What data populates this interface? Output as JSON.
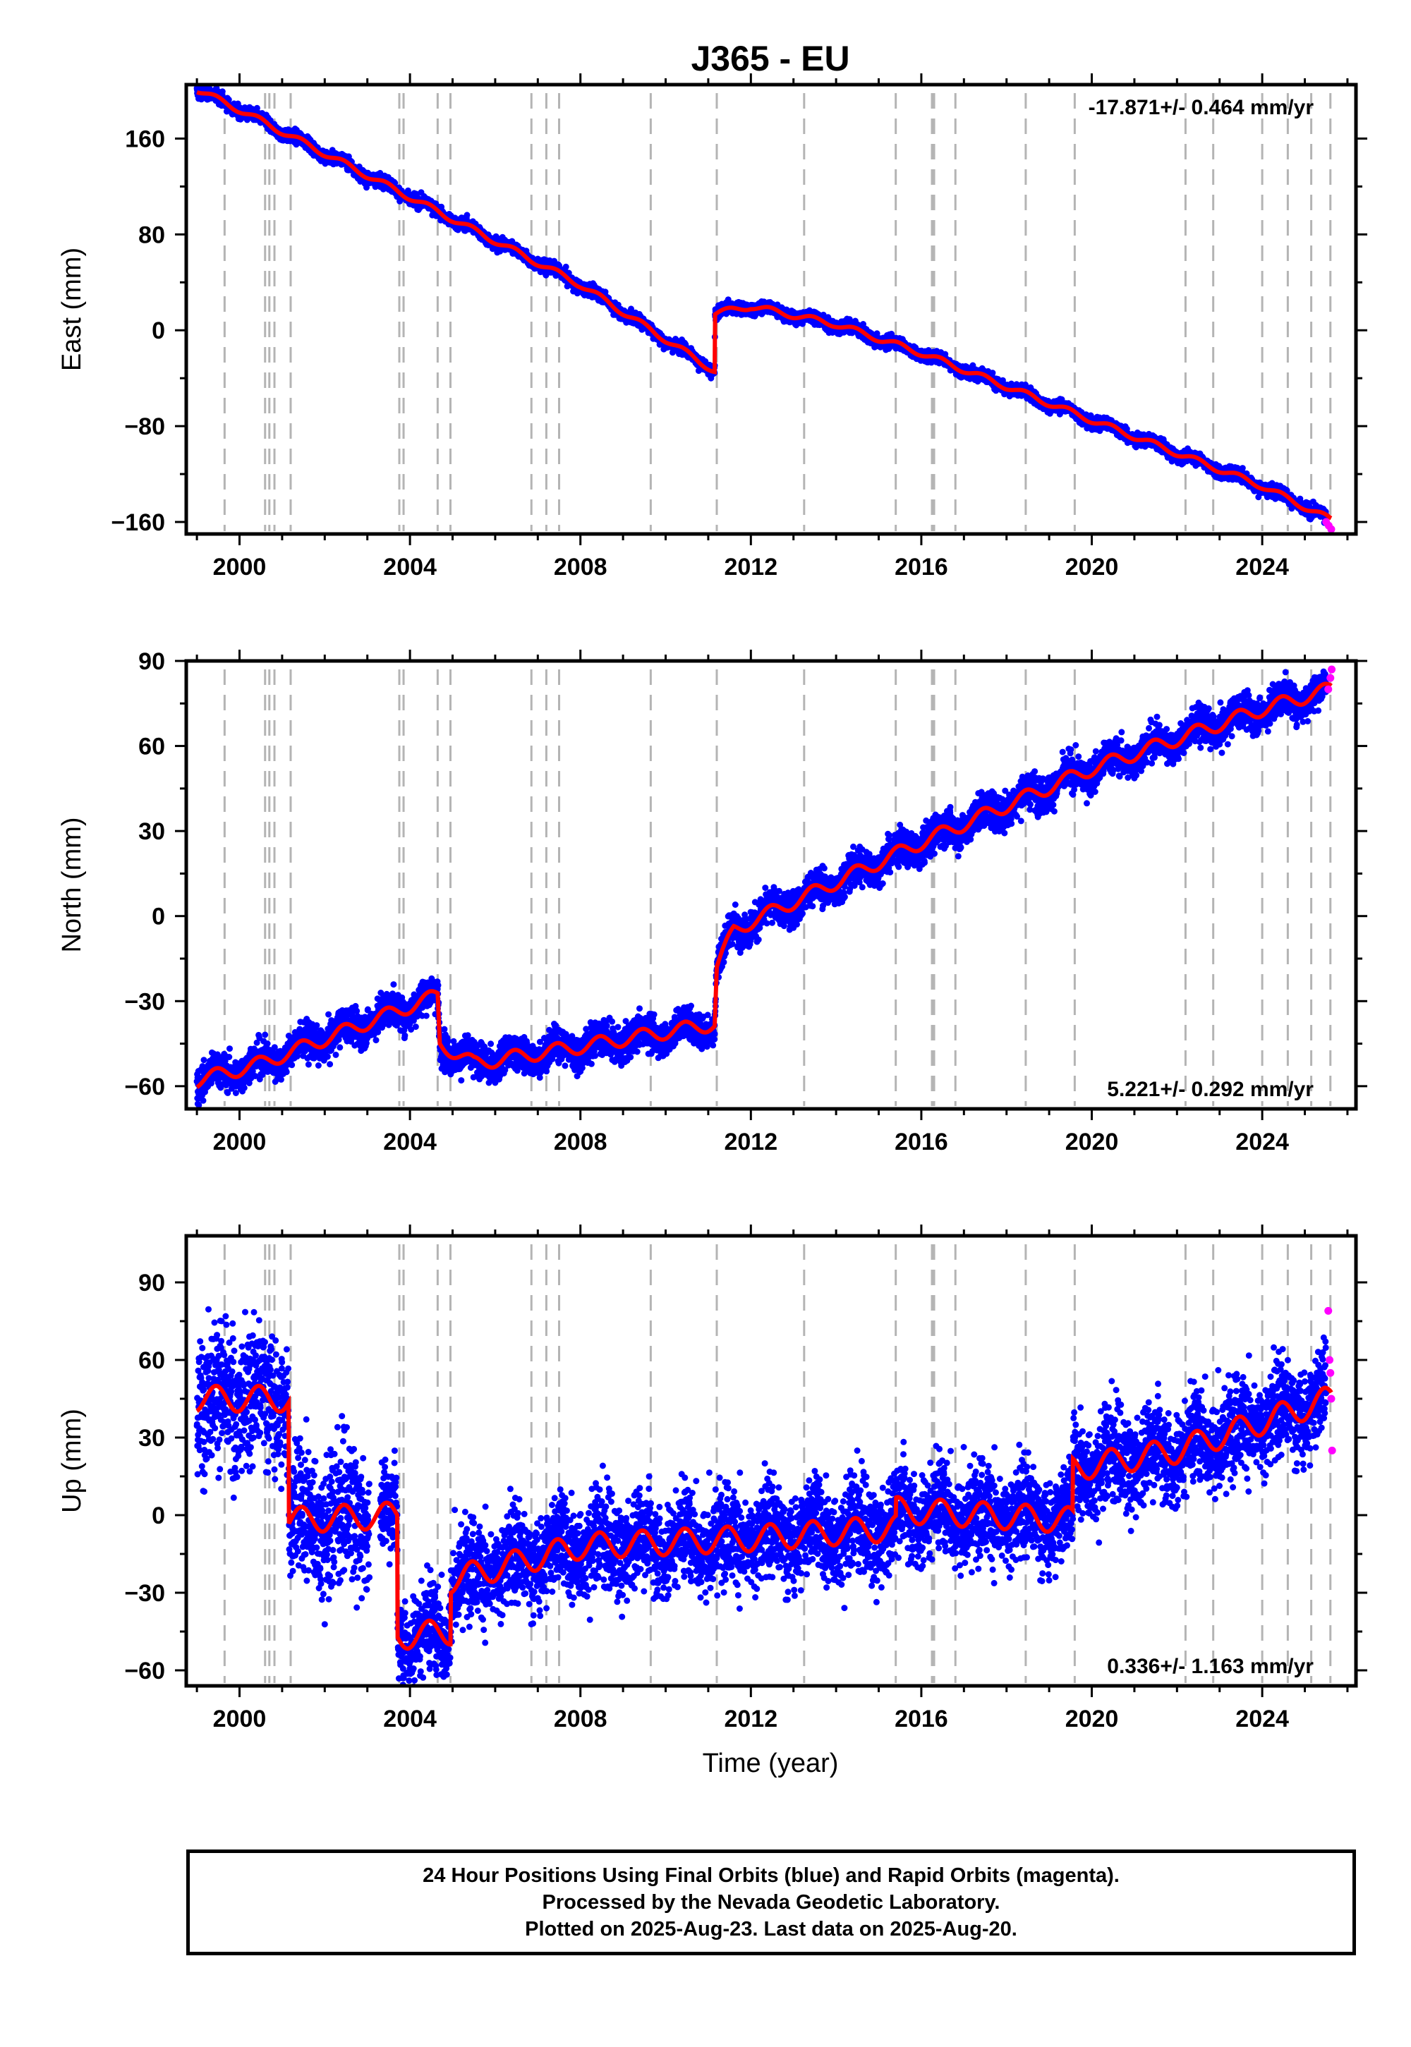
{
  "title": "J365 - EU",
  "xlabel": "Time (year)",
  "footer": {
    "line1": "24 Hour Positions Using Final Orbits (blue) and Rapid Orbits (magenta).",
    "line2": "Processed by the Nevada Geodetic Laboratory.",
    "line3": "Plotted on 2025-Aug-23. Last data on 2025-Aug-20."
  },
  "colors": {
    "final": "#0000ff",
    "rapid": "#ff00ff",
    "model": "#ff0000",
    "steps": "#b4b4b4"
  },
  "chart_data": [
    {
      "type": "scatter",
      "component": "east",
      "ylabel": "East (mm)",
      "rate_text": "-17.871+/- 0.464 mm/yr",
      "xlim": [
        1998.75,
        2026.2
      ],
      "ylim": [
        -170,
        205
      ],
      "xticks": [
        2000,
        2004,
        2008,
        2012,
        2016,
        2020,
        2024
      ],
      "yticks": [
        -160,
        -80,
        0,
        80,
        160
      ],
      "ytick_labels": [
        "−160",
        "−80",
        "0",
        "80",
        "160"
      ],
      "rapid_points": {
        "x": [
          2025.5,
          2025.56,
          2025.62
        ],
        "y": [
          -160,
          -163,
          -166
        ]
      },
      "model_knots": {
        "x": [
          1999.0,
          2000.0,
          2004.0,
          2008.0,
          2011.15,
          2011.16,
          2012.0,
          2014.0,
          2016.0,
          2020.0,
          2024.0,
          2025.6
        ],
        "y": [
          201,
          184,
          111,
          38,
          -34,
          14,
          20,
          5,
          -19,
          -75,
          -130,
          -158
        ]
      },
      "model_seasonal_amp": 2.5,
      "scatter": 2.5,
      "outlier_amp": 0
    },
    {
      "type": "scatter",
      "component": "north",
      "ylabel": "North (mm)",
      "rate_text": "5.221+/- 0.292 mm/yr",
      "xlim": [
        1998.75,
        2026.2
      ],
      "ylim": [
        -68,
        90
      ],
      "xticks": [
        2000,
        2004,
        2008,
        2012,
        2016,
        2020,
        2024
      ],
      "yticks": [
        -60,
        -30,
        0,
        30,
        60,
        90
      ],
      "ytick_labels": [
        "−60",
        "−30",
        "0",
        "30",
        "60",
        "90"
      ],
      "rapid_points": {
        "x": [
          2025.55,
          2025.6,
          2025.63
        ],
        "y": [
          80,
          84,
          87
        ]
      },
      "model_knots": {
        "x": [
          1999.0,
          2000.5,
          2004.65,
          2004.7,
          2005.5,
          2008.0,
          2011.15,
          2011.2,
          2011.6,
          2012.0,
          2014.0,
          2016.0,
          2020.0,
          2024.0,
          2025.6
        ],
        "y": [
          -58,
          -52,
          -28,
          -45,
          -52,
          -46,
          -38,
          -18,
          -5,
          -2,
          12,
          26,
          52,
          73,
          80
        ]
      },
      "model_seasonal_amp": 2.5,
      "scatter": 3,
      "outlier_amp": 0
    },
    {
      "type": "scatter",
      "component": "up",
      "ylabel": "Up (mm)",
      "rate_text": "0.336+/- 1.163 mm/yr",
      "xlim": [
        1998.75,
        2026.2
      ],
      "ylim": [
        -66,
        108
      ],
      "xticks": [
        2000,
        2004,
        2008,
        2012,
        2016,
        2020,
        2024
      ],
      "yticks": [
        -60,
        -30,
        0,
        30,
        60,
        90
      ],
      "ytick_labels": [
        "−60",
        "−30",
        "0",
        "30",
        "60",
        "90"
      ],
      "rapid_points": {
        "x": [
          2025.55,
          2025.58,
          2025.6,
          2025.62,
          2025.64
        ],
        "y": [
          79,
          60,
          55,
          45,
          25
        ]
      },
      "model_knots": {
        "x": [
          1999.0,
          2001.15,
          2001.16,
          2003.7,
          2003.71,
          2004.95,
          2004.96,
          2008.0,
          2012.0,
          2015.4,
          2015.41,
          2019.55,
          2019.56,
          2022.0,
          2025.6
        ],
        "y": [
          45,
          45,
          -2,
          0,
          -47,
          -45,
          -25,
          -12,
          -9,
          -5,
          2,
          -2,
          18,
          25,
          45
        ]
      },
      "model_seasonal_amp": 5,
      "scatter": 9,
      "outlier_amp": 1
    }
  ],
  "step_epochs": [
    1999.65,
    2000.6,
    2000.7,
    2000.82,
    2001.2,
    2003.75,
    2003.85,
    2004.65,
    2004.95,
    2006.85,
    2007.2,
    2007.5,
    2009.65,
    2011.2,
    2013.25,
    2015.4,
    2016.25,
    2016.3,
    2016.8,
    2018.45,
    2019.6,
    2022.2,
    2022.85,
    2024.0,
    2024.6,
    2025.15,
    2025.6
  ]
}
